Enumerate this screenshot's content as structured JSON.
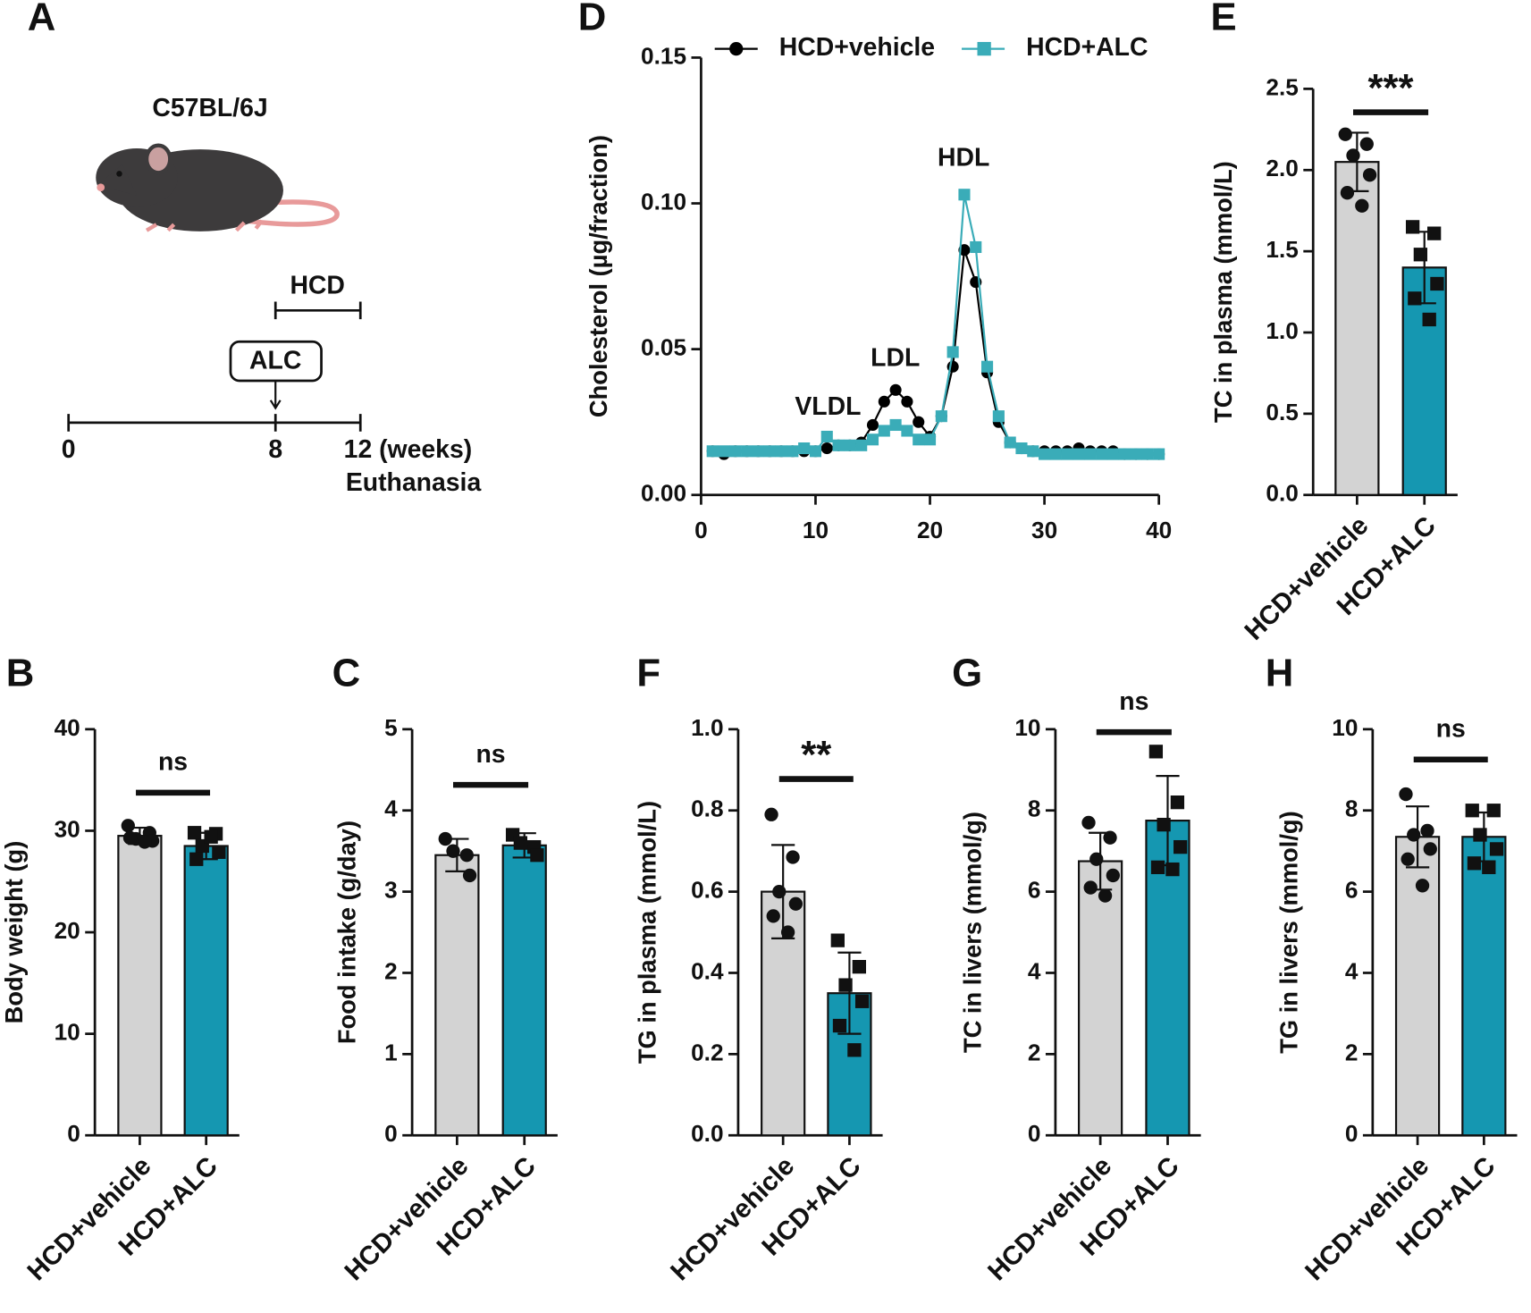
{
  "schematic": {
    "panel": "A",
    "strain": "C57BL/6J",
    "diet": "HCD",
    "treatment": "ALC",
    "timeline": [
      "0",
      "8",
      "12 (weeks)"
    ],
    "endpoint": "Euthanasia"
  },
  "chart_data": [
    {
      "panel": "D",
      "type": "line",
      "ylabel": "Cholesterol (µg/fraction)",
      "annotations": [
        "VLDL",
        "LDL",
        "HDL"
      ],
      "x": [
        1,
        2,
        3,
        4,
        5,
        6,
        7,
        8,
        9,
        10,
        11,
        12,
        13,
        14,
        15,
        16,
        17,
        18,
        19,
        20,
        21,
        22,
        23,
        24,
        25,
        26,
        27,
        28,
        29,
        30,
        31,
        32,
        33,
        34,
        35,
        36,
        37,
        38,
        39,
        40
      ],
      "xlim": [
        0,
        40
      ],
      "xticks": [
        0,
        10,
        20,
        30,
        40
      ],
      "ylim": [
        0,
        0.15
      ],
      "yticks": [
        {
          "value": 0,
          "label": "0.00"
        },
        0.05,
        {
          "value": 0.1,
          "label": "0.10"
        },
        0.15
      ],
      "series": [
        {
          "name": "HCD+vehicle",
          "color": "#000000",
          "marker": "circle",
          "values": [
            0.015,
            0.014,
            0.015,
            0.015,
            0.015,
            0.015,
            0.015,
            0.015,
            0.015,
            0.015,
            0.016,
            0.017,
            0.017,
            0.018,
            0.024,
            0.032,
            0.036,
            0.032,
            0.025,
            0.02,
            0.027,
            0.044,
            0.084,
            0.073,
            0.042,
            0.025,
            0.018,
            0.016,
            0.015,
            0.015,
            0.015,
            0.015,
            0.016,
            0.015,
            0.015,
            0.015,
            0.014,
            0.014,
            0.014,
            0.014
          ]
        },
        {
          "name": "HCD+ALC",
          "color": "#3aacb8",
          "marker": "square",
          "values": [
            0.015,
            0.015,
            0.015,
            0.015,
            0.015,
            0.015,
            0.015,
            0.015,
            0.016,
            0.015,
            0.02,
            0.017,
            0.017,
            0.017,
            0.019,
            0.022,
            0.024,
            0.022,
            0.019,
            0.019,
            0.027,
            0.049,
            0.103,
            0.085,
            0.044,
            0.027,
            0.018,
            0.016,
            0.015,
            0.014,
            0.014,
            0.014,
            0.014,
            0.014,
            0.014,
            0.014,
            0.014,
            0.014,
            0.014,
            0.014
          ]
        }
      ]
    },
    {
      "panel": "E",
      "type": "bar",
      "ylabel": "TC in plasma (mmol/L)",
      "categories": [
        "HCD+vehicle",
        "HCD+ALC"
      ],
      "colors": [
        "#d3d3d3",
        "#1597b1"
      ],
      "values": [
        2.05,
        1.4
      ],
      "errors": [
        0.18,
        0.22
      ],
      "points": [
        [
          2.22,
          2.16,
          2.09,
          1.97,
          1.86,
          1.78
        ],
        [
          1.65,
          1.61,
          1.48,
          1.3,
          1.21,
          1.08
        ]
      ],
      "significance": "***",
      "ylim": [
        0,
        2.5
      ],
      "yticks": [
        {
          "value": 0,
          "label": "0.0"
        },
        0.5,
        {
          "value": 1,
          "label": "1.0"
        },
        1.5,
        {
          "value": 2,
          "label": "2.0"
        },
        2.5
      ]
    },
    {
      "panel": "B",
      "type": "bar",
      "ylabel": "Body weight (g)",
      "categories": [
        "HCD+vehicle",
        "HCD+ALC"
      ],
      "colors": [
        "#d3d3d3",
        "#1597b1"
      ],
      "values": [
        29.5,
        28.5
      ],
      "errors": [
        0.8,
        1.3
      ],
      "points": [
        [
          30.5,
          29.8,
          29.2,
          29.0,
          29.3,
          28.9
        ],
        [
          29.8,
          29.7,
          28.5,
          27.9,
          27.2,
          29.4
        ]
      ],
      "significance": "ns",
      "ylim": [
        0,
        40
      ],
      "yticks": [
        0,
        10,
        20,
        30,
        40
      ]
    },
    {
      "panel": "C",
      "type": "bar",
      "ylabel": "Food intake (g/day)",
      "categories": [
        "HCD+vehicle",
        "HCD+ALC"
      ],
      "colors": [
        "#d3d3d3",
        "#1597b1"
      ],
      "values": [
        3.45,
        3.57
      ],
      "errors": [
        0.2,
        0.15
      ],
      "points": [
        [
          3.65,
          3.45,
          3.5,
          3.2
        ],
        [
          3.7,
          3.55,
          3.6,
          3.45
        ]
      ],
      "significance": "ns",
      "ylim": [
        0,
        5
      ],
      "yticks": [
        0,
        1,
        2,
        3,
        4,
        5
      ]
    },
    {
      "panel": "F",
      "type": "bar",
      "ylabel": "TG in plasma (mmol/L)",
      "categories": [
        "HCD+vehicle",
        "HCD+ALC"
      ],
      "colors": [
        "#d3d3d3",
        "#1597b1"
      ],
      "values": [
        0.6,
        0.35
      ],
      "errors": [
        0.115,
        0.1
      ],
      "points": [
        [
          0.79,
          0.685,
          0.6,
          0.57,
          0.54,
          0.5
        ],
        [
          0.48,
          0.415,
          0.37,
          0.33,
          0.27,
          0.21
        ]
      ],
      "significance": "**",
      "ylim": [
        0,
        1
      ],
      "yticks": [
        {
          "value": 0,
          "label": "0.0"
        },
        0.2,
        0.4,
        0.6,
        0.8,
        {
          "value": 1,
          "label": "1.0"
        }
      ]
    },
    {
      "panel": "G",
      "type": "bar",
      "ylabel": "TC in livers (mmol/g)",
      "categories": [
        "HCD+vehicle",
        "HCD+ALC"
      ],
      "colors": [
        "#d3d3d3",
        "#1597b1"
      ],
      "values": [
        6.75,
        7.75
      ],
      "errors": [
        0.7,
        1.1
      ],
      "points": [
        [
          7.7,
          7.33,
          6.8,
          6.4,
          6.1,
          5.9
        ],
        [
          9.45,
          8.2,
          7.65,
          7.1,
          6.6,
          6.55
        ]
      ],
      "significance": "ns",
      "ylim": [
        0,
        10
      ],
      "yticks": [
        0,
        2,
        4,
        6,
        8,
        10
      ]
    },
    {
      "panel": "H",
      "type": "bar",
      "ylabel": "TG in livers (mmol/g)",
      "categories": [
        "HCD+vehicle",
        "HCD+ALC"
      ],
      "colors": [
        "#d3d3d3",
        "#1597b1"
      ],
      "values": [
        7.35,
        7.35
      ],
      "errors": [
        0.75,
        0.6
      ],
      "points": [
        [
          8.4,
          7.5,
          7.4,
          7.05,
          6.8,
          6.15
        ],
        [
          8.0,
          8.0,
          7.4,
          7.05,
          6.7,
          6.6
        ]
      ],
      "significance": "ns",
      "ylim": [
        0,
        10
      ],
      "yticks": [
        0,
        2,
        4,
        6,
        8,
        10
      ]
    }
  ]
}
